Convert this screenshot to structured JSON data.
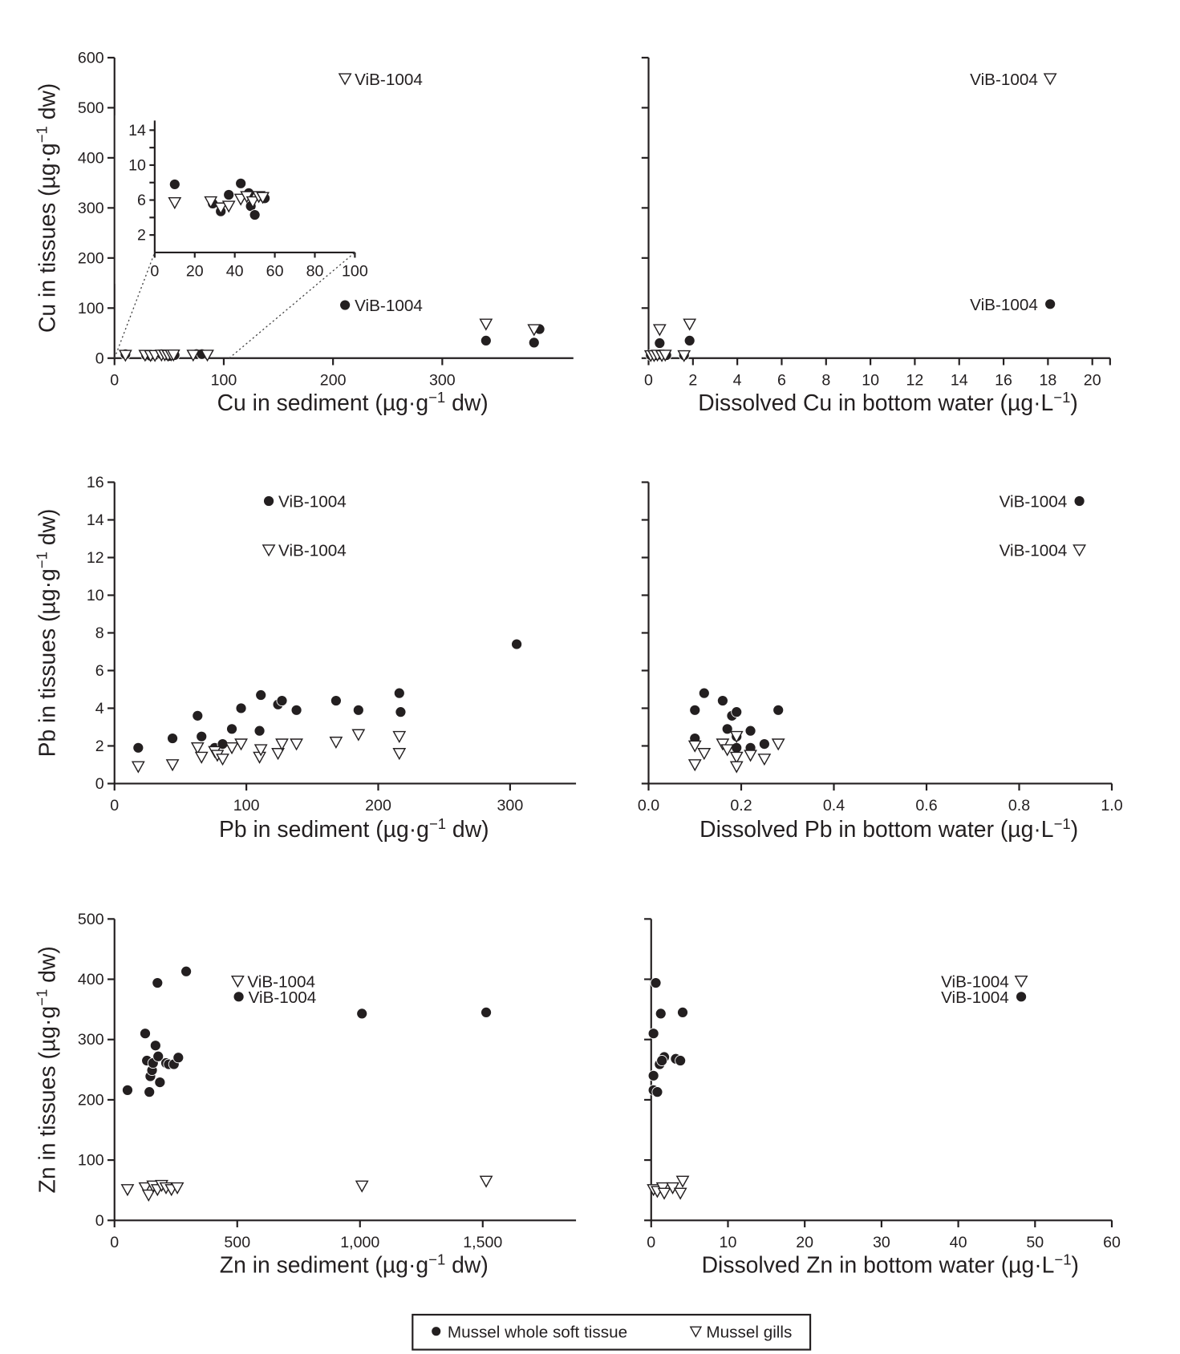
{
  "legend": {
    "items": [
      {
        "label": "Mussel whole soft tissue",
        "marker": "filled-circle"
      },
      {
        "label": "Mussel gills",
        "marker": "open-down-triangle"
      }
    ],
    "placement": "bottom-center"
  },
  "colors": {
    "ink": "#231f20",
    "background": "#ffffff"
  },
  "chart_data": [
    {
      "type": "scatter",
      "xlabel": {
        "pre": "Cu in sediment (µg·g",
        "sup": "−1",
        "post": " dw)"
      },
      "ylabel": {
        "pre": "Cu in tissues (µg·g",
        "sup": "−1",
        "post": " dw)"
      },
      "xlim": [
        0,
        420
      ],
      "ylim": [
        0,
        600
      ],
      "xticks": [
        0,
        100,
        200,
        300
      ],
      "xtick_labels": [
        "0",
        "100",
        "200",
        "300"
      ],
      "yticks": [
        0,
        100,
        200,
        300,
        400,
        500,
        600
      ],
      "ytick_labels": [
        "0",
        "100",
        "200",
        "300",
        "400",
        "500",
        "600"
      ],
      "series": [
        {
          "name": "Mussel whole soft tissue",
          "marker": "filled-circle",
          "x": [
            10,
            29,
            33,
            37,
            43,
            47,
            48,
            50,
            55,
            75,
            80,
            211,
            340,
            384,
            389
          ],
          "y": [
            7.8,
            5.6,
            4.7,
            6.6,
            7.9,
            6.8,
            5.3,
            4.3,
            6.2,
            8,
            8,
            106,
            35,
            31,
            58
          ]
        },
        {
          "name": "Mussel gills",
          "marker": "open-down-triangle",
          "x": [
            10,
            28,
            33,
            37,
            43,
            46,
            49,
            52,
            54,
            72,
            85,
            211,
            340,
            384
          ],
          "y": [
            5.7,
            5.8,
            5.1,
            5.3,
            6.1,
            6.4,
            5.8,
            6.4,
            6.3,
            6,
            6,
            558,
            68,
            57
          ]
        }
      ],
      "annotations": [
        {
          "text": "ViB-1004",
          "x": 211,
          "y": 558,
          "side": "right"
        },
        {
          "text": "ViB-1004",
          "x": 211,
          "y": 106,
          "side": "right"
        }
      ],
      "inset": {
        "xlim": [
          0,
          100
        ],
        "ylim": [
          0,
          14
        ],
        "xticks": [
          0,
          20,
          40,
          60,
          80,
          100
        ],
        "xtick_labels": [
          "0",
          "20",
          "40",
          "60",
          "80",
          "100"
        ],
        "yticks": [
          2,
          4,
          6,
          8,
          10,
          12,
          14
        ],
        "ytick_labels": [
          "2",
          "",
          "6",
          "",
          "10",
          "",
          "14"
        ],
        "series": [
          {
            "name": "Mussel whole soft tissue",
            "marker": "filled-circle",
            "x": [
              10,
              29,
              33,
              37,
              43,
              47,
              48,
              50,
              55
            ],
            "y": [
              7.8,
              5.6,
              4.7,
              6.6,
              7.9,
              6.8,
              5.3,
              4.3,
              6.2
            ]
          },
          {
            "name": "Mussel gills",
            "marker": "open-down-triangle",
            "x": [
              10,
              28,
              33,
              37,
              43,
              46,
              49,
              52,
              54
            ],
            "y": [
              5.7,
              5.8,
              5.1,
              5.3,
              6.1,
              6.4,
              5.8,
              6.4,
              6.3
            ]
          }
        ]
      },
      "grid": false
    },
    {
      "type": "scatter",
      "xlabel": {
        "pre": "Dissolved Cu in bottom water (µg·L",
        "sup": "−1",
        "post": ")"
      },
      "ylabel": {
        "pre": "",
        "sup": "",
        "post": ""
      },
      "xlim": [
        0,
        20.8
      ],
      "ylim": [
        0,
        600
      ],
      "xticks": [
        0,
        2,
        4,
        6,
        8,
        10,
        12,
        14,
        16,
        18,
        20
      ],
      "xtick_labels": [
        "0",
        "2",
        "4",
        "6",
        "8",
        "10",
        "12",
        "14",
        "16",
        "18",
        "20"
      ],
      "yticks": [
        0,
        100,
        200,
        300,
        400,
        500,
        600
      ],
      "ytick_labels": [
        "",
        "",
        "",
        "",
        "",
        "",
        ""
      ],
      "series": [
        {
          "name": "Mussel whole soft tissue",
          "marker": "filled-circle",
          "x": [
            0.1,
            0.3,
            0.5,
            0.7,
            0.8,
            1.6,
            0.5,
            1.85,
            18.1
          ],
          "y": [
            6,
            6,
            7,
            7,
            6,
            6,
            30,
            35,
            108
          ]
        },
        {
          "name": "Mussel gills",
          "marker": "open-down-triangle",
          "x": [
            0.1,
            0.25,
            0.4,
            0.6,
            0.75,
            1.6,
            0.5,
            1.85,
            18.1
          ],
          "y": [
            5,
            5,
            6,
            5,
            6,
            5,
            57,
            68,
            558
          ]
        }
      ],
      "annotations": [
        {
          "text": "ViB-1004",
          "x": 18.1,
          "y": 558,
          "side": "left"
        },
        {
          "text": "ViB-1004",
          "x": 18.1,
          "y": 108,
          "side": "left"
        }
      ],
      "grid": false
    },
    {
      "type": "scatter",
      "xlabel": {
        "pre": "Pb in sediment (µg·g",
        "sup": "−1",
        "post": " dw)"
      },
      "ylabel": {
        "pre": "Pb in tissues (µg·g",
        "sup": "−1",
        "post": " dw)"
      },
      "xlim": [
        0,
        350
      ],
      "ylim": [
        0,
        16
      ],
      "xticks": [
        0,
        100,
        200,
        300
      ],
      "xtick_labels": [
        "0",
        "100",
        "200",
        "300"
      ],
      "yticks": [
        0,
        2,
        4,
        6,
        8,
        10,
        12,
        14,
        16
      ],
      "ytick_labels": [
        "0",
        "2",
        "4",
        "6",
        "8",
        "10",
        "12",
        "14",
        "16"
      ],
      "series": [
        {
          "name": "Mussel whole soft tissue",
          "marker": "filled-circle",
          "x": [
            18,
            44,
            63,
            66,
            76,
            82,
            89,
            96,
            110,
            111,
            124,
            127,
            138,
            168,
            185,
            216,
            217,
            305,
            117
          ],
          "y": [
            1.9,
            2.4,
            3.6,
            2.5,
            1.9,
            2.1,
            2.9,
            4.0,
            2.8,
            4.7,
            4.2,
            4.4,
            3.9,
            4.4,
            3.9,
            4.8,
            3.8,
            7.4,
            15.0
          ]
        },
        {
          "name": "Mussel gills",
          "marker": "open-down-triangle",
          "x": [
            18,
            44,
            63,
            66,
            76,
            78,
            82,
            89,
            96,
            110,
            111,
            124,
            127,
            138,
            168,
            185,
            216,
            216,
            117
          ],
          "y": [
            0.9,
            1.0,
            1.9,
            1.4,
            1.7,
            1.5,
            1.3,
            1.9,
            2.1,
            1.4,
            1.8,
            1.6,
            2.1,
            2.1,
            2.2,
            2.6,
            2.5,
            1.6,
            12.4
          ]
        }
      ],
      "annotations": [
        {
          "text": "ViB-1004",
          "x": 117,
          "y": 15.0,
          "side": "right"
        },
        {
          "text": "ViB-1004",
          "x": 117,
          "y": 12.4,
          "side": "right"
        }
      ],
      "grid": false
    },
    {
      "type": "scatter",
      "xlabel": {
        "pre": "Dissolved Pb in bottom water (µg·L",
        "sup": "−1",
        "post": ")"
      },
      "ylabel": {
        "pre": "",
        "sup": "",
        "post": ""
      },
      "xlim": [
        0,
        1.0
      ],
      "ylim": [
        0,
        16
      ],
      "xticks": [
        0,
        0.2,
        0.4,
        0.6,
        0.8,
        1.0
      ],
      "xtick_labels": [
        "0.0",
        "0.2",
        "0.4",
        "0.6",
        "0.8",
        "1.0"
      ],
      "yticks": [
        0,
        2,
        4,
        6,
        8,
        10,
        12,
        14,
        16
      ],
      "ytick_labels": [
        "",
        "",
        "",
        "",
        "",
        "",
        "",
        "",
        ""
      ],
      "series": [
        {
          "name": "Mussel whole soft tissue",
          "marker": "filled-circle",
          "x": [
            0.1,
            0.12,
            0.16,
            0.18,
            0.19,
            0.17,
            0.22,
            0.1,
            0.19,
            0.22,
            0.25,
            0.28,
            0.19,
            0.93
          ],
          "y": [
            3.9,
            4.8,
            4.4,
            3.6,
            3.8,
            2.9,
            2.8,
            2.4,
            1.9,
            1.9,
            2.1,
            3.9,
            2.5,
            15.0
          ]
        },
        {
          "name": "Mussel gills",
          "marker": "open-down-triangle",
          "x": [
            0.1,
            0.1,
            0.12,
            0.16,
            0.17,
            0.19,
            0.19,
            0.19,
            0.22,
            0.25,
            0.28,
            0.93
          ],
          "y": [
            1.0,
            2.0,
            1.6,
            2.1,
            1.8,
            2.5,
            1.4,
            0.9,
            1.5,
            1.3,
            2.1,
            12.4
          ]
        }
      ],
      "annotations": [
        {
          "text": "ViB-1004",
          "x": 0.93,
          "y": 15.0,
          "side": "left"
        },
        {
          "text": "ViB-1004",
          "x": 0.93,
          "y": 12.4,
          "side": "left"
        }
      ],
      "grid": false
    },
    {
      "type": "scatter",
      "xlabel": {
        "pre": "Zn in sediment (µg·g",
        "sup": "−1",
        "post": " dw)"
      },
      "ylabel": {
        "pre": "Zn in tissues (µg·g",
        "sup": "−1",
        "post": " dw)"
      },
      "xlim": [
        0,
        1880
      ],
      "ylim": [
        0,
        500
      ],
      "xticks": [
        0,
        500,
        1000,
        1500
      ],
      "xtick_labels": [
        "0",
        "500",
        "1,000",
        "1,500"
      ],
      "yticks": [
        0,
        100,
        200,
        300,
        400,
        500
      ],
      "ytick_labels": [
        "0",
        "100",
        "200",
        "300",
        "400",
        "500"
      ],
      "series": [
        {
          "name": "Mussel whole soft tissue",
          "marker": "filled-circle",
          "x": [
            53,
            125,
            132,
            142,
            146,
            153,
            157,
            167,
            178,
            175,
            185,
            210,
            221,
            242,
            260,
            292,
            506,
            1008,
            1514
          ],
          "y": [
            216,
            310,
            265,
            213,
            239,
            249,
            261,
            290,
            272,
            394,
            229,
            261,
            259,
            259,
            270,
            413,
            371,
            343,
            345
          ]
        },
        {
          "name": "Mussel gills",
          "marker": "open-down-triangle",
          "x": [
            53,
            125,
            139,
            157,
            175,
            192,
            210,
            232,
            256,
            502,
            1008,
            1514
          ],
          "y": [
            51,
            54,
            42,
            57,
            51,
            58,
            54,
            51,
            54,
            397,
            57,
            65
          ]
        }
      ],
      "annotations": [
        {
          "text": "ViB-1004",
          "x": 502,
          "y": 397,
          "side": "right"
        },
        {
          "text": "ViB-1004",
          "x": 506,
          "y": 371,
          "side": "right"
        }
      ],
      "grid": false
    },
    {
      "type": "scatter",
      "xlabel": {
        "pre": "Dissolved Zn in bottom water (µg·L",
        "sup": "−1",
        "post": ")"
      },
      "ylabel": {
        "pre": "",
        "sup": "",
        "post": ""
      },
      "xlim": [
        0,
        60
      ],
      "ylim": [
        0,
        500
      ],
      "xticks": [
        0,
        10,
        20,
        30,
        40,
        50,
        60
      ],
      "xtick_labels": [
        "0",
        "10",
        "20",
        "30",
        "40",
        "50",
        "60"
      ],
      "yticks": [
        0,
        100,
        200,
        300,
        400,
        500
      ],
      "ytick_labels": [
        "",
        "",
        "",
        "",
        "",
        ""
      ],
      "series": [
        {
          "name": "Mussel whole soft tissue",
          "marker": "filled-circle",
          "x": [
            0.6,
            1.25,
            0.3,
            1.7,
            3.2,
            3.8,
            1.1,
            1.4,
            0.3,
            0.3,
            0.8,
            4.1,
            48.2
          ],
          "y": [
            394,
            343,
            310,
            271,
            268,
            265,
            259,
            265,
            240,
            216,
            213,
            345,
            371
          ]
        },
        {
          "name": "Mussel gills",
          "marker": "open-down-triangle",
          "x": [
            0.3,
            0.8,
            1.5,
            1.7,
            2.8,
            3.8,
            4.1,
            48.2
          ],
          "y": [
            51,
            48,
            54,
            45,
            54,
            45,
            65,
            397
          ]
        }
      ],
      "annotations": [
        {
          "text": "ViB-1004",
          "x": 48.2,
          "y": 397,
          "side": "left"
        },
        {
          "text": "ViB-1004",
          "x": 48.2,
          "y": 371,
          "side": "left"
        }
      ],
      "grid": false
    }
  ]
}
